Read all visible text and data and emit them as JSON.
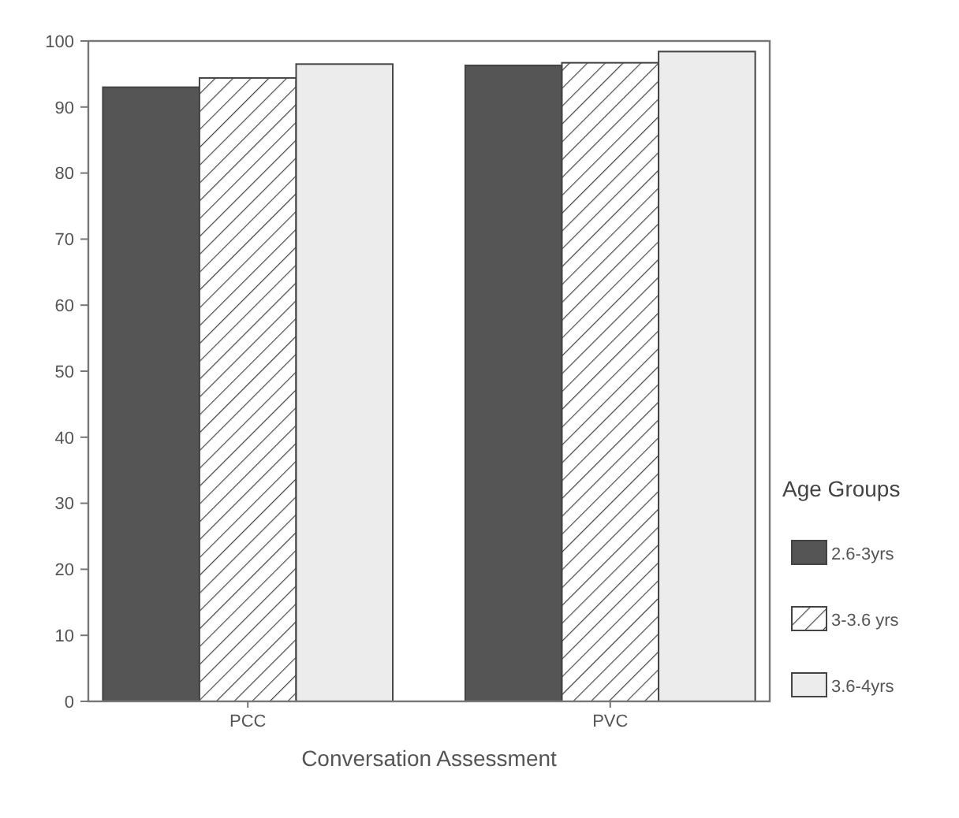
{
  "chart_data": {
    "type": "bar",
    "xlabel": "Conversation Assessment",
    "legend_title": "Age Groups",
    "categories": [
      "PCC",
      "PVC"
    ],
    "series": [
      {
        "name": "2.6-3yrs",
        "color": "#555555",
        "values": [
          93.0,
          96.3
        ]
      },
      {
        "name": "3-3.6 yrs",
        "color": "#444444",
        "values": [
          94.4,
          96.7
        ]
      },
      {
        "name": "3.6-4yrs",
        "color": "#ececec",
        "values": [
          96.5,
          98.4
        ]
      }
    ],
    "ylim": [
      0,
      100
    ],
    "yticks": [
      0,
      10,
      20,
      30,
      40,
      50,
      60,
      70,
      80,
      90,
      100
    ],
    "legend": "right",
    "grid": false
  }
}
